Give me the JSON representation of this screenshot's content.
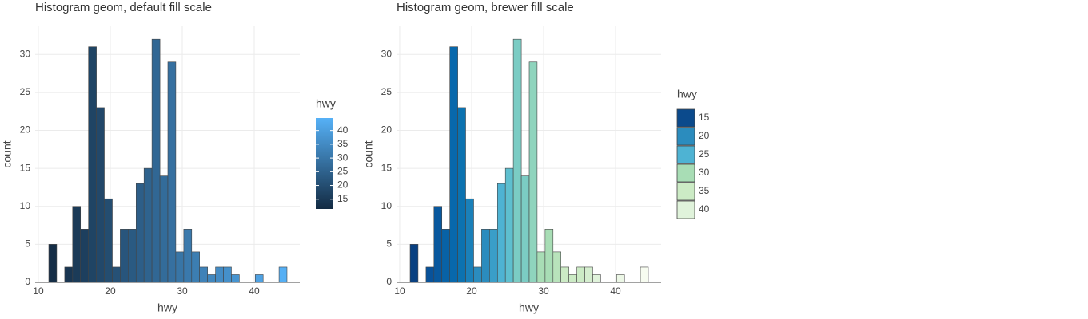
{
  "chart_data": [
    {
      "type": "histogram",
      "title": "Histogram geom, default fill scale",
      "xlabel": "hwy",
      "ylabel": "count",
      "bins": [
        11.45,
        12.55,
        13.66,
        14.76,
        15.86,
        16.97,
        18.07,
        19.17,
        20.28,
        21.38,
        22.48,
        23.59,
        24.69,
        25.79,
        26.9,
        28.0,
        29.1,
        30.21,
        31.31,
        32.41,
        33.52,
        34.62,
        35.72,
        36.83,
        37.93,
        39.03,
        40.14,
        41.24,
        42.34,
        43.45,
        44.55
      ],
      "values": [
        5,
        0,
        2,
        10,
        7,
        31,
        23,
        11,
        2,
        7,
        7,
        13,
        15,
        32,
        14,
        29,
        4,
        7,
        4,
        2,
        1,
        2,
        2,
        1,
        0,
        0,
        1,
        0,
        0,
        2
      ],
      "fill_low": "#132B43",
      "fill_high": "#56B1F7",
      "xlim": [
        9.56,
        46.33
      ],
      "xticks": [
        10,
        20,
        30,
        40
      ],
      "ylim": [
        0,
        33.7
      ],
      "yticks": [
        0,
        5,
        10,
        15,
        20,
        25,
        30
      ],
      "grid": true,
      "legend": {
        "title": "hwy",
        "type": "colorbar",
        "ticks": [
          15,
          20,
          25,
          30,
          35,
          40
        ]
      }
    },
    {
      "type": "histogram",
      "title": "Histogram geom, brewer fill scale",
      "xlabel": "hwy",
      "ylabel": "count",
      "bins": [
        11.45,
        12.55,
        13.66,
        14.76,
        15.86,
        16.97,
        18.07,
        19.17,
        20.28,
        21.38,
        22.48,
        23.59,
        24.69,
        25.79,
        26.9,
        28.0,
        29.1,
        30.21,
        31.31,
        32.41,
        33.52,
        34.62,
        35.72,
        36.83,
        37.93,
        39.03,
        40.14,
        41.24,
        42.34,
        43.45,
        44.55
      ],
      "values": [
        5,
        0,
        2,
        10,
        7,
        31,
        23,
        11,
        2,
        7,
        7,
        13,
        15,
        32,
        14,
        29,
        4,
        7,
        4,
        2,
        1,
        2,
        2,
        1,
        0,
        0,
        1,
        0,
        0,
        2
      ],
      "colors": [
        "#084081",
        "#08488c",
        "#08529a",
        "#08589e",
        "#0862a6",
        "#0868ac",
        "#0c72b0",
        "#1a80b9",
        "#2b8cbe",
        "#2b8cbe",
        "#3a9ec8",
        "#4eb3d3",
        "#5ebfcf",
        "#7bccc4",
        "#7bccc4",
        "#8fd4bd",
        "#a8ddb5",
        "#a8ddb5",
        "#b8e3bb",
        "#ccebc5",
        "#ccebc5",
        "#ccebc5",
        "#d5eecf",
        "#e0f3db",
        "#e4f4de",
        "#e8f6e2",
        "#ecf7e6",
        "#f0f9ea",
        "#f3faed",
        "#f7fcf0"
      ],
      "xlim": [
        9.56,
        46.33
      ],
      "xticks": [
        10,
        20,
        30,
        40
      ],
      "ylim": [
        0,
        33.7
      ],
      "yticks": [
        0,
        5,
        10,
        15,
        20,
        25,
        30
      ],
      "grid": true,
      "legend": {
        "title": "hwy",
        "type": "keys",
        "labels": [
          15,
          20,
          25,
          30,
          35,
          40
        ],
        "colors": [
          "#0b4a8c",
          "#2b8cbe",
          "#4eb3d3",
          "#a8ddb5",
          "#ccebc5",
          "#e0f3db"
        ]
      }
    }
  ]
}
